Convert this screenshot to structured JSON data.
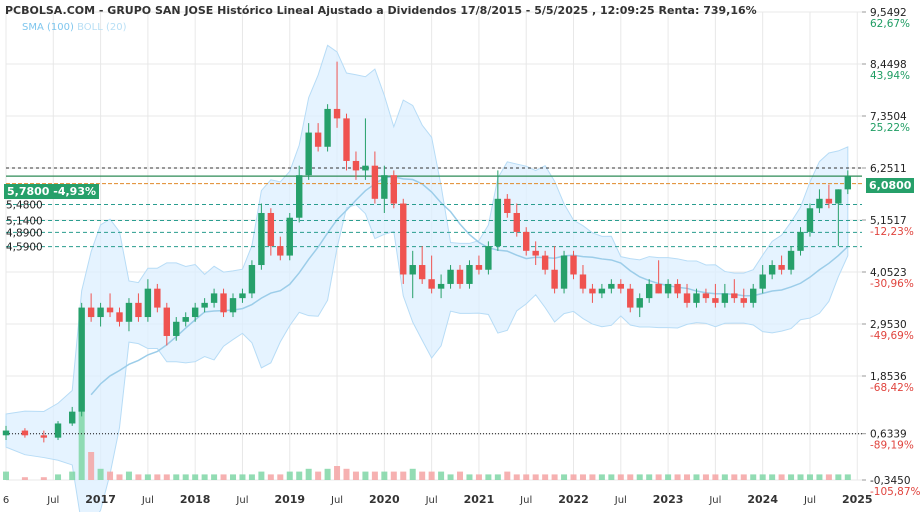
{
  "title": "PCBOLSA.COM - GRUPO SAN JOSE Histórico Lineal Ajustado a Dividendos 17/8/2015 - 5/5/2025 , 12:09:25 Renta: 739,16%",
  "legend": {
    "sma": "SMA (100)",
    "boll": "BOLL (20)"
  },
  "last_price_tag": "6,0800",
  "left_tag": "5,7800 -4,93%",
  "colors": {
    "up": "#26a06a",
    "down": "#ef5350",
    "bands": "#dcefff",
    "sma": "#9ccde9",
    "grid": "#e8e8e8"
  },
  "chart_data": {
    "type": "candlestick",
    "x_axis_labels": [
      "6",
      "Jul",
      "2017",
      "Jul",
      "2018",
      "Jul",
      "2019",
      "Jul",
      "2020",
      "Jul",
      "2021",
      "Jul",
      "2022",
      "Jul",
      "2023",
      "Jul",
      "2024",
      "Jul",
      "2025"
    ],
    "y_axis": [
      {
        "price": "9,5492",
        "pct": "62,67%"
      },
      {
        "price": "8,4498",
        "pct": "43,94%"
      },
      {
        "price": "7,3504",
        "pct": "25,22%"
      },
      {
        "price": "6,2511",
        "pct": ""
      },
      {
        "price": "5,1517",
        "pct": "-12,23%"
      },
      {
        "price": "4,0523",
        "pct": "-30,96%"
      },
      {
        "price": "2,9530",
        "pct": "-49,69%"
      },
      {
        "price": "1,8536",
        "pct": "-68,42%"
      },
      {
        "price": "0,6339",
        "pct": "-89,19%"
      },
      {
        "price": "-0,3450",
        "pct": "-105,87%"
      }
    ],
    "ylim": [
      -0.345,
      9.5492
    ],
    "level_labels": [
      "5,4800",
      "5,1400",
      "4,8900",
      "4,5900"
    ],
    "level_values": [
      5.48,
      5.14,
      4.89,
      4.59
    ],
    "horizontal_lines": [
      6.2511,
      6.08,
      5.92,
      0.6339
    ],
    "candles": [
      {
        "t": 0.0,
        "o": 0.6,
        "h": 0.8,
        "l": 0.5,
        "c": 0.7
      },
      {
        "t": 0.2,
        "o": 0.7,
        "h": 0.75,
        "l": 0.55,
        "c": 0.6
      },
      {
        "t": 0.4,
        "o": 0.6,
        "h": 0.7,
        "l": 0.45,
        "c": 0.55
      },
      {
        "t": 0.55,
        "o": 0.55,
        "h": 0.9,
        "l": 0.5,
        "c": 0.85
      },
      {
        "t": 0.7,
        "o": 0.85,
        "h": 1.2,
        "l": 0.8,
        "c": 1.1
      },
      {
        "t": 0.8,
        "o": 1.1,
        "h": 3.4,
        "l": 1.0,
        "c": 3.3
      },
      {
        "t": 0.9,
        "o": 3.3,
        "h": 3.6,
        "l": 3.0,
        "c": 3.1
      },
      {
        "t": 1.0,
        "o": 3.1,
        "h": 3.4,
        "l": 2.9,
        "c": 3.3
      },
      {
        "t": 1.1,
        "o": 3.3,
        "h": 3.6,
        "l": 3.1,
        "c": 3.2
      },
      {
        "t": 1.2,
        "o": 3.2,
        "h": 3.3,
        "l": 2.9,
        "c": 3.0
      },
      {
        "t": 1.3,
        "o": 3.0,
        "h": 3.5,
        "l": 2.8,
        "c": 3.4
      },
      {
        "t": 1.4,
        "o": 3.4,
        "h": 3.6,
        "l": 3.0,
        "c": 3.1
      },
      {
        "t": 1.5,
        "o": 3.1,
        "h": 3.9,
        "l": 3.0,
        "c": 3.7
      },
      {
        "t": 1.6,
        "o": 3.7,
        "h": 3.8,
        "l": 3.2,
        "c": 3.3
      },
      {
        "t": 1.7,
        "o": 3.3,
        "h": 3.4,
        "l": 2.5,
        "c": 2.7
      },
      {
        "t": 1.8,
        "o": 2.7,
        "h": 3.1,
        "l": 2.6,
        "c": 3.0
      },
      {
        "t": 1.9,
        "o": 3.0,
        "h": 3.2,
        "l": 2.9,
        "c": 3.1
      },
      {
        "t": 2.0,
        "o": 3.1,
        "h": 3.4,
        "l": 3.0,
        "c": 3.3
      },
      {
        "t": 2.1,
        "o": 3.3,
        "h": 3.5,
        "l": 3.2,
        "c": 3.4
      },
      {
        "t": 2.2,
        "o": 3.4,
        "h": 3.7,
        "l": 3.3,
        "c": 3.6
      },
      {
        "t": 2.3,
        "o": 3.6,
        "h": 3.7,
        "l": 3.1,
        "c": 3.2
      },
      {
        "t": 2.4,
        "o": 3.2,
        "h": 3.6,
        "l": 3.1,
        "c": 3.5
      },
      {
        "t": 2.5,
        "o": 3.5,
        "h": 3.7,
        "l": 3.4,
        "c": 3.6
      },
      {
        "t": 2.6,
        "o": 3.6,
        "h": 4.3,
        "l": 3.5,
        "c": 4.2
      },
      {
        "t": 2.7,
        "o": 4.2,
        "h": 5.5,
        "l": 4.1,
        "c": 5.3
      },
      {
        "t": 2.8,
        "o": 5.3,
        "h": 5.4,
        "l": 4.4,
        "c": 4.6
      },
      {
        "t": 2.9,
        "o": 4.6,
        "h": 4.8,
        "l": 4.3,
        "c": 4.4
      },
      {
        "t": 3.0,
        "o": 4.4,
        "h": 5.3,
        "l": 4.3,
        "c": 5.2
      },
      {
        "t": 3.1,
        "o": 5.2,
        "h": 6.3,
        "l": 5.1,
        "c": 6.1
      },
      {
        "t": 3.2,
        "o": 6.1,
        "h": 7.2,
        "l": 6.0,
        "c": 7.0
      },
      {
        "t": 3.3,
        "o": 7.0,
        "h": 7.2,
        "l": 6.6,
        "c": 6.7
      },
      {
        "t": 3.4,
        "o": 6.7,
        "h": 7.6,
        "l": 6.6,
        "c": 7.5
      },
      {
        "t": 3.5,
        "o": 7.5,
        "h": 8.5,
        "l": 7.1,
        "c": 7.3
      },
      {
        "t": 3.6,
        "o": 7.3,
        "h": 7.4,
        "l": 6.2,
        "c": 6.4
      },
      {
        "t": 3.7,
        "o": 6.4,
        "h": 6.6,
        "l": 6.0,
        "c": 6.2
      },
      {
        "t": 3.8,
        "o": 6.2,
        "h": 7.3,
        "l": 6.0,
        "c": 6.3
      },
      {
        "t": 3.9,
        "o": 6.3,
        "h": 6.6,
        "l": 5.5,
        "c": 5.6
      },
      {
        "t": 4.0,
        "o": 5.6,
        "h": 6.3,
        "l": 5.3,
        "c": 6.1
      },
      {
        "t": 4.1,
        "o": 6.1,
        "h": 6.2,
        "l": 5.4,
        "c": 5.5
      },
      {
        "t": 4.2,
        "o": 5.5,
        "h": 5.6,
        "l": 3.8,
        "c": 4.0
      },
      {
        "t": 4.3,
        "o": 4.0,
        "h": 4.5,
        "l": 3.5,
        "c": 4.2
      },
      {
        "t": 4.4,
        "o": 4.2,
        "h": 4.6,
        "l": 3.8,
        "c": 3.9
      },
      {
        "t": 4.5,
        "o": 3.9,
        "h": 4.4,
        "l": 3.6,
        "c": 3.7
      },
      {
        "t": 4.6,
        "o": 3.7,
        "h": 4.0,
        "l": 3.5,
        "c": 3.8
      },
      {
        "t": 4.7,
        "o": 3.8,
        "h": 4.2,
        "l": 3.7,
        "c": 4.1
      },
      {
        "t": 4.8,
        "o": 4.1,
        "h": 4.2,
        "l": 3.7,
        "c": 3.8
      },
      {
        "t": 4.9,
        "o": 3.8,
        "h": 4.3,
        "l": 3.7,
        "c": 4.2
      },
      {
        "t": 5.0,
        "o": 4.2,
        "h": 4.4,
        "l": 4.0,
        "c": 4.1
      },
      {
        "t": 5.1,
        "o": 4.1,
        "h": 4.7,
        "l": 4.0,
        "c": 4.6
      },
      {
        "t": 5.2,
        "o": 4.6,
        "h": 6.2,
        "l": 4.5,
        "c": 5.6
      },
      {
        "t": 5.3,
        "o": 5.6,
        "h": 5.7,
        "l": 5.2,
        "c": 5.3
      },
      {
        "t": 5.4,
        "o": 5.3,
        "h": 5.5,
        "l": 4.8,
        "c": 4.9
      },
      {
        "t": 5.5,
        "o": 4.9,
        "h": 5.0,
        "l": 4.4,
        "c": 4.5
      },
      {
        "t": 5.6,
        "o": 4.5,
        "h": 4.7,
        "l": 4.2,
        "c": 4.4
      },
      {
        "t": 5.7,
        "o": 4.4,
        "h": 4.5,
        "l": 4.0,
        "c": 4.1
      },
      {
        "t": 5.8,
        "o": 4.1,
        "h": 4.6,
        "l": 3.6,
        "c": 3.7
      },
      {
        "t": 5.9,
        "o": 3.7,
        "h": 4.5,
        "l": 3.6,
        "c": 4.4
      },
      {
        "t": 6.0,
        "o": 4.4,
        "h": 4.5,
        "l": 3.9,
        "c": 4.0
      },
      {
        "t": 6.1,
        "o": 4.0,
        "h": 4.2,
        "l": 3.6,
        "c": 3.7
      },
      {
        "t": 6.2,
        "o": 3.7,
        "h": 3.8,
        "l": 3.4,
        "c": 3.6
      },
      {
        "t": 6.3,
        "o": 3.6,
        "h": 3.8,
        "l": 3.5,
        "c": 3.7
      },
      {
        "t": 6.4,
        "o": 3.7,
        "h": 3.9,
        "l": 3.6,
        "c": 3.8
      },
      {
        "t": 6.5,
        "o": 3.8,
        "h": 3.9,
        "l": 3.6,
        "c": 3.7
      },
      {
        "t": 6.6,
        "o": 3.7,
        "h": 3.8,
        "l": 3.2,
        "c": 3.3
      },
      {
        "t": 6.7,
        "o": 3.3,
        "h": 3.6,
        "l": 3.1,
        "c": 3.5
      },
      {
        "t": 6.8,
        "o": 3.5,
        "h": 3.9,
        "l": 3.4,
        "c": 3.8
      },
      {
        "t": 6.9,
        "o": 3.8,
        "h": 4.3,
        "l": 3.6,
        "c": 3.6
      },
      {
        "t": 7.0,
        "o": 3.6,
        "h": 3.9,
        "l": 3.5,
        "c": 3.8
      },
      {
        "t": 7.1,
        "o": 3.8,
        "h": 3.9,
        "l": 3.5,
        "c": 3.6
      },
      {
        "t": 7.2,
        "o": 3.6,
        "h": 3.8,
        "l": 3.3,
        "c": 3.4
      },
      {
        "t": 7.3,
        "o": 3.4,
        "h": 3.7,
        "l": 3.3,
        "c": 3.6
      },
      {
        "t": 7.4,
        "o": 3.6,
        "h": 3.7,
        "l": 3.4,
        "c": 3.5
      },
      {
        "t": 7.5,
        "o": 3.5,
        "h": 3.8,
        "l": 3.3,
        "c": 3.4
      },
      {
        "t": 7.6,
        "o": 3.4,
        "h": 3.8,
        "l": 3.3,
        "c": 3.6
      },
      {
        "t": 7.7,
        "o": 3.6,
        "h": 3.9,
        "l": 3.4,
        "c": 3.5
      },
      {
        "t": 7.8,
        "o": 3.5,
        "h": 3.7,
        "l": 3.3,
        "c": 3.4
      },
      {
        "t": 7.9,
        "o": 3.4,
        "h": 3.8,
        "l": 3.3,
        "c": 3.7
      },
      {
        "t": 8.0,
        "o": 3.7,
        "h": 4.2,
        "l": 3.6,
        "c": 4.0
      },
      {
        "t": 8.1,
        "o": 4.0,
        "h": 4.3,
        "l": 3.9,
        "c": 4.2
      },
      {
        "t": 8.2,
        "o": 4.2,
        "h": 4.4,
        "l": 4.0,
        "c": 4.1
      },
      {
        "t": 8.3,
        "o": 4.1,
        "h": 4.6,
        "l": 4.0,
        "c": 4.5
      },
      {
        "t": 8.4,
        "o": 4.5,
        "h": 5.0,
        "l": 4.4,
        "c": 4.9
      },
      {
        "t": 8.5,
        "o": 4.9,
        "h": 5.5,
        "l": 4.8,
        "c": 5.4
      },
      {
        "t": 8.6,
        "o": 5.4,
        "h": 5.8,
        "l": 5.3,
        "c": 5.6
      },
      {
        "t": 8.7,
        "o": 5.6,
        "h": 5.9,
        "l": 5.4,
        "c": 5.5
      },
      {
        "t": 8.8,
        "o": 5.5,
        "h": 5.8,
        "l": 4.6,
        "c": 5.8
      },
      {
        "t": 8.9,
        "o": 5.8,
        "h": 6.2,
        "l": 5.7,
        "c": 6.08
      }
    ],
    "volume": [
      0.3,
      0.1,
      0.1,
      0.2,
      0.3,
      2.5,
      1.0,
      0.4,
      0.3,
      0.2,
      0.3,
      0.2,
      0.2,
      0.2,
      0.2,
      0.2,
      0.2,
      0.2,
      0.2,
      0.2,
      0.2,
      0.2,
      0.2,
      0.2,
      0.3,
      0.2,
      0.2,
      0.3,
      0.3,
      0.4,
      0.3,
      0.4,
      0.5,
      0.4,
      0.3,
      0.3,
      0.3,
      0.3,
      0.3,
      0.3,
      0.4,
      0.3,
      0.3,
      0.3,
      0.2,
      0.3,
      0.2,
      0.2,
      0.2,
      0.2,
      0.3,
      0.2,
      0.2,
      0.2,
      0.2,
      0.2,
      0.2,
      0.2,
      0.2,
      0.2,
      0.2,
      0.2,
      0.2,
      0.2,
      0.2,
      0.2,
      0.2,
      0.2,
      0.2,
      0.2,
      0.2,
      0.2,
      0.2,
      0.2,
      0.2,
      0.2,
      0.2,
      0.2,
      0.2,
      0.2,
      0.2,
      0.2,
      0.2,
      0.2,
      0.2,
      0.2,
      0.2,
      0.2,
      0.2,
      0.2
    ]
  }
}
